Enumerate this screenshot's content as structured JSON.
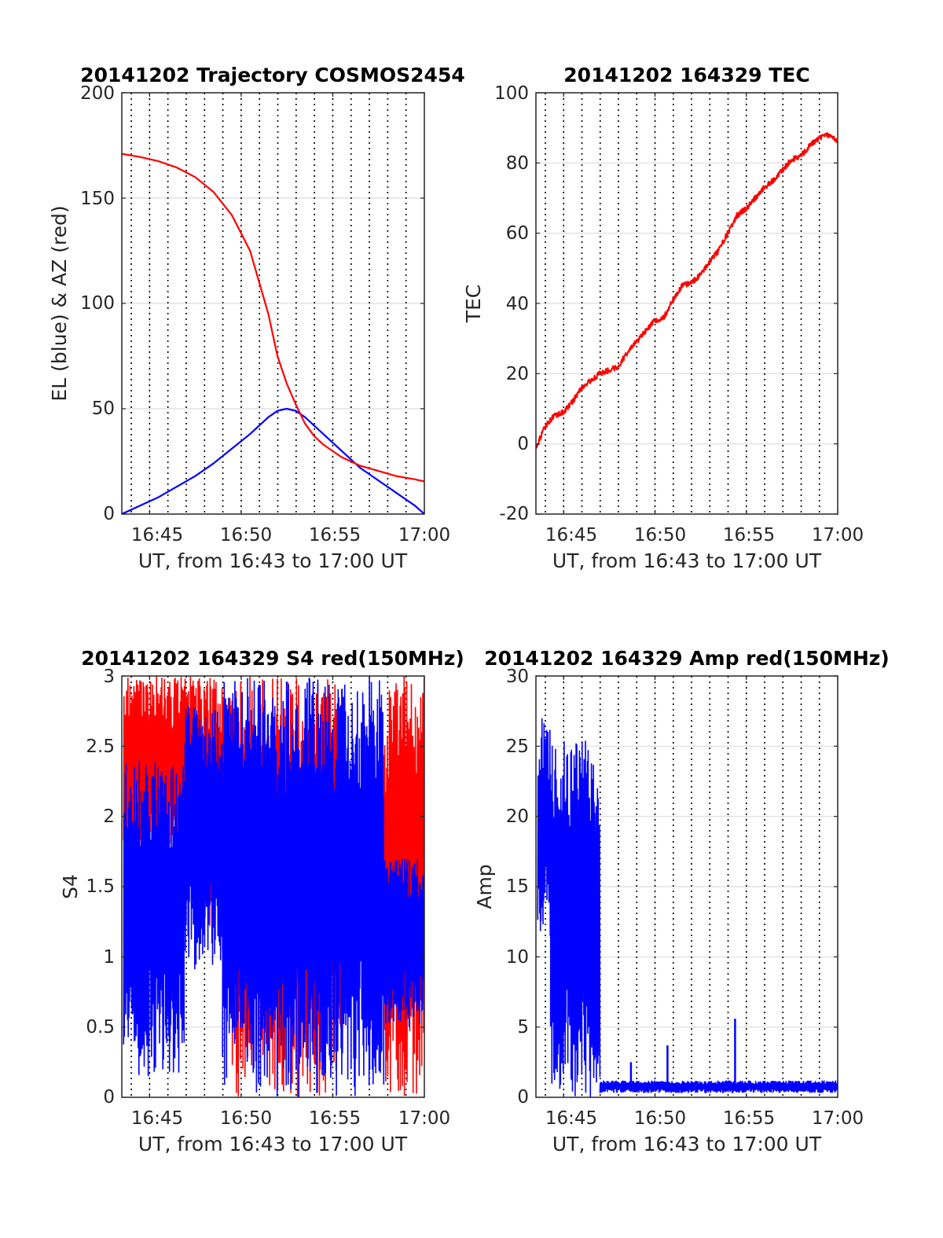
{
  "colors": {
    "el_blue": "#0000ff",
    "az_red": "#ff0000",
    "grid_solid": "#dcdcdc",
    "grid_dotted": "#000000",
    "axes": "#262626"
  },
  "chart_data": [
    {
      "type": "line",
      "title": "20141202 Trajectory COSMOS2454",
      "xlabel": "UT, from 16:43 to 17:00 UT",
      "ylabel": "EL (blue) & AZ (red)",
      "xlim": [
        "16:43:29",
        "17:00:00"
      ],
      "ylim": [
        0,
        200
      ],
      "x_ticks": [
        "16:45",
        "16:50",
        "16:55",
        "17:00"
      ],
      "y_ticks": [
        "0",
        "50",
        "100",
        "150",
        "200"
      ],
      "x_minutes": [
        0,
        1,
        2,
        3,
        4,
        5,
        6,
        7,
        8,
        8.5,
        9,
        9.5,
        10,
        10.5,
        11,
        12,
        13,
        14,
        15,
        16,
        16.52
      ],
      "series": [
        {
          "key": "el",
          "color": "#0000ff",
          "values": [
            0,
            4,
            8,
            13,
            18,
            24,
            31,
            38,
            46,
            49,
            50,
            49,
            46,
            42,
            38,
            30,
            22,
            16,
            10,
            4,
            0
          ]
        },
        {
          "key": "az",
          "color": "#ff0000",
          "values": [
            171,
            169.5,
            167.5,
            164.5,
            160,
            153,
            142,
            125,
            95,
            75,
            62,
            52,
            43,
            37,
            33,
            27,
            23,
            20.5,
            18,
            16.5,
            15.5
          ]
        }
      ]
    },
    {
      "type": "line",
      "title": "20141202 164329 TEC",
      "xlabel": "UT, from 16:43 to 17:00 UT",
      "ylabel": "TEC",
      "xlim": [
        "16:43:29",
        "17:00:00"
      ],
      "ylim": [
        -20,
        100
      ],
      "x_ticks": [
        "16:45",
        "16:50",
        "16:55",
        "17:00"
      ],
      "y_ticks": [
        "-20",
        "0",
        "20",
        "40",
        "60",
        "80",
        "100"
      ],
      "x_minutes": [
        0,
        0.5,
        1,
        1.5,
        2,
        2.5,
        3,
        3.5,
        4,
        4.5,
        5,
        5.5,
        6,
        6.5,
        7,
        7.5,
        8,
        8.5,
        9,
        9.5,
        10,
        10.5,
        11,
        11.5,
        12,
        12.5,
        13,
        13.5,
        14,
        14.5,
        15,
        15.5,
        16,
        16.52
      ],
      "series": [
        {
          "key": "tec",
          "color": "#ff0000",
          "values": [
            -1,
            5,
            8,
            9,
            12,
            16,
            18,
            20,
            21,
            22,
            26,
            29,
            32,
            35,
            36,
            41,
            45,
            46,
            48,
            52,
            55,
            60,
            65,
            67,
            70,
            73,
            75,
            78,
            81,
            82,
            85,
            87,
            88,
            86
          ]
        }
      ]
    },
    {
      "type": "line",
      "title": "20141202 164329 S4 red(150MHz)",
      "xlabel": "UT, from 16:43 to 17:00 UT",
      "ylabel": "S4",
      "xlim": [
        "16:43:29",
        "17:00:00"
      ],
      "ylim": [
        0,
        3
      ],
      "x_ticks": [
        "16:45",
        "16:50",
        "16:55",
        "17:00"
      ],
      "y_ticks": [
        "0",
        "0.5",
        "1",
        "1.5",
        "2",
        "2.5",
        "3"
      ],
      "series": [
        {
          "key": "s4_red",
          "color": "#ff0000",
          "bands": [
            {
              "from": 0.1,
              "to": 4.0,
              "low": 1.7,
              "high": 3
            },
            {
              "from": 4.0,
              "to": 6.0,
              "low": 1.2,
              "high": 3
            },
            {
              "from": 6.0,
              "to": 10.5,
              "low": 0.0,
              "high": 3
            },
            {
              "from": 10.5,
              "to": 12.0,
              "low": 0.0,
              "high": 3
            },
            {
              "from": 14.3,
              "to": 16.52,
              "low": 0.0,
              "high": 3
            }
          ]
        },
        {
          "key": "s4_blue",
          "color": "#0000ff",
          "bands": [
            {
              "from": 0.1,
              "to": 3.4,
              "low": 0.15,
              "high": 2.4
            },
            {
              "from": 3.4,
              "to": 5.5,
              "low": 0.9,
              "high": 2.8
            },
            {
              "from": 5.5,
              "to": 8.5,
              "low": 0.0,
              "high": 3.0
            },
            {
              "from": 8.5,
              "to": 11.5,
              "low": 0.0,
              "high": 3.0
            },
            {
              "from": 11.5,
              "to": 14.3,
              "low": 0.0,
              "high": 3.0
            },
            {
              "from": 14.3,
              "to": 16.52,
              "low": 0.5,
              "high": 1.7
            }
          ]
        }
      ]
    },
    {
      "type": "line",
      "title": "20141202 164329 Amp red(150MHz)",
      "xlabel": "UT, from 16:43 to 17:00 UT",
      "ylabel": "Amp",
      "xlim": [
        "16:43:29",
        "17:00:00"
      ],
      "ylim": [
        0,
        30
      ],
      "x_ticks": [
        "16:45",
        "16:50",
        "16:55",
        "17:00"
      ],
      "y_ticks": [
        "0",
        "5",
        "10",
        "15",
        "20",
        "25",
        "30"
      ],
      "series": [
        {
          "key": "amp",
          "color": "#0000ff",
          "bands": [
            {
              "from": 0.1,
              "to": 0.8,
              "low": 11,
              "high": 27
            },
            {
              "from": 0.8,
              "to": 3.2,
              "low": 0,
              "high": 25.5
            },
            {
              "from": 3.2,
              "to": 3.5,
              "low": 0.5,
              "high": 23
            },
            {
              "from": 3.5,
              "to": 16.52,
              "low": 0.3,
              "high": 1.2
            }
          ],
          "spikes": [
            {
              "x": 5.2,
              "value": 2.5
            },
            {
              "x": 7.2,
              "value": 3.7
            },
            {
              "x": 10.9,
              "value": 5.6
            }
          ]
        }
      ]
    }
  ]
}
